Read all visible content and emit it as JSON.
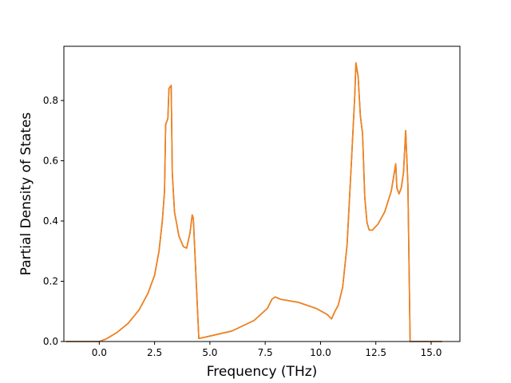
{
  "chart_data": {
    "type": "line",
    "title": "",
    "xlabel": "Frequency (THz)",
    "ylabel": "Partial Density of States",
    "xlim": [
      -1.6,
      16.3
    ],
    "ylim": [
      0.0,
      0.98
    ],
    "xticks": [
      0.0,
      2.5,
      5.0,
      7.5,
      10.0,
      12.5,
      15.0
    ],
    "xtick_labels": [
      "0.0",
      "2.5",
      "5.0",
      "7.5",
      "10.0",
      "12.5",
      "15.0"
    ],
    "yticks": [
      0.0,
      0.2,
      0.4,
      0.6,
      0.8
    ],
    "ytick_labels": [
      "0.0",
      "0.2",
      "0.4",
      "0.6",
      "0.8"
    ],
    "grid": false,
    "legend": "none",
    "series": [
      {
        "color": "#1f77b4",
        "x": [
          -1.5,
          0.0,
          0.3,
          0.8,
          1.3,
          1.8,
          2.2,
          2.5,
          2.7,
          2.85,
          2.95,
          3.0,
          3.1,
          3.15,
          3.2,
          3.25,
          3.3,
          3.4,
          3.6,
          3.8,
          3.95,
          4.1,
          4.2,
          4.25,
          4.35,
          4.5,
          5.0,
          6.0,
          7.0,
          7.6,
          7.8,
          7.95,
          8.2,
          9.0,
          9.8,
          10.3,
          10.5,
          10.65,
          10.8,
          11.0,
          11.2,
          11.4,
          11.55,
          11.6,
          11.7,
          11.8,
          11.9,
          12.0,
          12.1,
          12.2,
          12.35,
          12.6,
          12.9,
          13.2,
          13.4,
          13.45,
          13.55,
          13.65,
          13.75,
          13.85,
          13.95,
          14.05,
          14.1,
          15.0,
          15.5
        ],
        "y": [
          0.0,
          0.0,
          0.008,
          0.03,
          0.06,
          0.105,
          0.16,
          0.22,
          0.3,
          0.4,
          0.5,
          0.72,
          0.74,
          0.84,
          0.845,
          0.85,
          0.56,
          0.43,
          0.35,
          0.315,
          0.31,
          0.36,
          0.42,
          0.41,
          0.25,
          0.01,
          0.018,
          0.035,
          0.07,
          0.11,
          0.14,
          0.148,
          0.14,
          0.13,
          0.11,
          0.09,
          0.075,
          0.1,
          0.12,
          0.18,
          0.32,
          0.6,
          0.82,
          0.925,
          0.88,
          0.75,
          0.69,
          0.48,
          0.395,
          0.37,
          0.37,
          0.39,
          0.43,
          0.5,
          0.59,
          0.51,
          0.49,
          0.51,
          0.56,
          0.7,
          0.52,
          0.0,
          0.0,
          0.0,
          0.0
        ]
      },
      {
        "color": "#ff7f0e",
        "x": [
          -1.5,
          0.0,
          0.3,
          0.8,
          1.3,
          1.8,
          2.2,
          2.5,
          2.7,
          2.85,
          2.95,
          3.0,
          3.1,
          3.15,
          3.2,
          3.25,
          3.3,
          3.4,
          3.6,
          3.8,
          3.95,
          4.1,
          4.2,
          4.25,
          4.35,
          4.5,
          5.0,
          6.0,
          7.0,
          7.6,
          7.8,
          7.95,
          8.2,
          9.0,
          9.8,
          10.3,
          10.5,
          10.65,
          10.8,
          11.0,
          11.2,
          11.4,
          11.55,
          11.6,
          11.7,
          11.8,
          11.9,
          12.0,
          12.1,
          12.2,
          12.35,
          12.6,
          12.9,
          13.2,
          13.4,
          13.45,
          13.55,
          13.65,
          13.75,
          13.85,
          13.95,
          14.05,
          14.1,
          15.0,
          15.5
        ],
        "y": [
          0.0,
          0.0,
          0.008,
          0.03,
          0.06,
          0.105,
          0.16,
          0.22,
          0.3,
          0.4,
          0.5,
          0.72,
          0.74,
          0.84,
          0.845,
          0.85,
          0.56,
          0.43,
          0.35,
          0.315,
          0.31,
          0.36,
          0.42,
          0.41,
          0.25,
          0.01,
          0.018,
          0.035,
          0.07,
          0.11,
          0.14,
          0.148,
          0.14,
          0.13,
          0.11,
          0.09,
          0.075,
          0.1,
          0.12,
          0.18,
          0.32,
          0.6,
          0.82,
          0.925,
          0.88,
          0.75,
          0.69,
          0.48,
          0.395,
          0.37,
          0.37,
          0.39,
          0.43,
          0.5,
          0.59,
          0.51,
          0.49,
          0.51,
          0.56,
          0.7,
          0.52,
          0.0,
          0.0,
          0.0,
          0.0
        ]
      }
    ]
  }
}
